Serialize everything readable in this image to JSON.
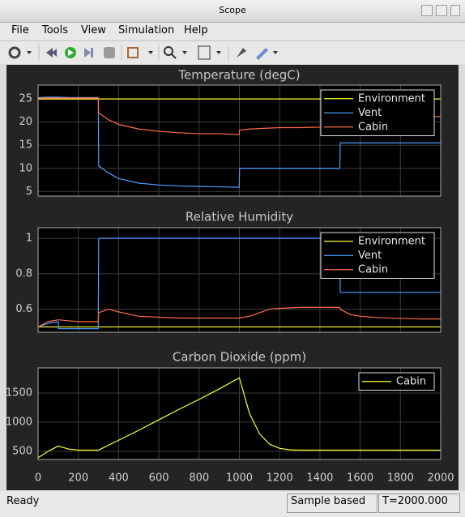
{
  "window": {
    "title": "Scope"
  },
  "menu": [
    "File",
    "Tools",
    "View",
    "Simulation",
    "Help"
  ],
  "status": {
    "message": "Ready",
    "mode": "Sample based",
    "time": "T=2000.000"
  },
  "chart_data": [
    {
      "type": "line",
      "title": "Temperature (degC)",
      "x": [
        0,
        50,
        100,
        150,
        200,
        250,
        299,
        301,
        350,
        400,
        500,
        600,
        700,
        800,
        900,
        999,
        1001,
        1050,
        1100,
        1200,
        1300,
        1400,
        1499,
        1501,
        1600,
        1700,
        1800,
        1900,
        2000
      ],
      "series": [
        {
          "name": "Environment",
          "color": "#ffff33",
          "values": [
            25,
            25,
            25,
            25,
            25,
            25,
            25,
            25,
            25,
            25,
            25,
            25,
            25,
            25,
            25,
            25,
            25,
            25,
            25,
            25,
            25,
            25,
            25,
            25,
            25,
            25,
            25,
            25,
            25
          ]
        },
        {
          "name": "Vent",
          "color": "#4d9dff",
          "values": [
            25.3,
            25.4,
            25.4,
            25.3,
            25.3,
            25.3,
            25.3,
            10.5,
            9,
            7.8,
            6.8,
            6.4,
            6.2,
            6.1,
            6.0,
            5.9,
            10,
            10,
            10,
            10,
            10,
            10,
            10,
            15.5,
            15.5,
            15.5,
            15.5,
            15.5,
            15.5
          ]
        },
        {
          "name": "Cabin",
          "color": "#ff6b4a",
          "values": [
            25.2,
            25.2,
            25.2,
            25.2,
            25.2,
            25.2,
            25.2,
            22,
            20.5,
            19.5,
            18.5,
            18,
            17.7,
            17.5,
            17.5,
            17.3,
            18.3,
            18.5,
            18.6,
            18.8,
            18.8,
            18.9,
            18.9,
            20.5,
            21,
            21.1,
            21.2,
            21.2,
            21.2
          ]
        }
      ],
      "xlim": [
        0,
        2000
      ],
      "xticks": [
        0,
        200,
        400,
        600,
        800,
        1000,
        1200,
        1400,
        1600,
        1800,
        2000
      ],
      "ylim": [
        4,
        28
      ],
      "yticks": [
        5,
        10,
        15,
        20,
        25
      ],
      "grid": true,
      "legend": "upper right"
    },
    {
      "type": "line",
      "title": "Relative Humidity",
      "x": [
        0,
        50,
        100,
        101,
        150,
        200,
        250,
        299,
        301,
        350,
        400,
        500,
        600,
        700,
        800,
        900,
        999,
        1050,
        1100,
        1150,
        1200,
        1300,
        1400,
        1499,
        1501,
        1550,
        1600,
        1700,
        1800,
        1900,
        2000
      ],
      "series": [
        {
          "name": "Environment",
          "color": "#ffff33",
          "values": [
            0.5,
            0.5,
            0.5,
            0.5,
            0.5,
            0.5,
            0.5,
            0.5,
            0.5,
            0.5,
            0.5,
            0.5,
            0.5,
            0.5,
            0.5,
            0.5,
            0.5,
            0.5,
            0.5,
            0.5,
            0.5,
            0.5,
            0.5,
            0.5,
            0.5,
            0.5,
            0.5,
            0.5,
            0.5,
            0.5,
            0.5
          ]
        },
        {
          "name": "Vent",
          "color": "#4d9dff",
          "values": [
            0.5,
            0.52,
            0.53,
            0.49,
            0.49,
            0.49,
            0.49,
            0.49,
            1.0,
            1.0,
            1.0,
            1.0,
            1.0,
            1.0,
            1.0,
            1.0,
            1.0,
            1.0,
            1.0,
            1.0,
            1.0,
            1.0,
            1.0,
            1.0,
            0.695,
            0.695,
            0.695,
            0.695,
            0.695,
            0.695,
            0.695
          ]
        },
        {
          "name": "Cabin",
          "color": "#ff6b4a",
          "values": [
            0.5,
            0.53,
            0.54,
            0.54,
            0.535,
            0.53,
            0.53,
            0.53,
            0.58,
            0.6,
            0.585,
            0.56,
            0.555,
            0.55,
            0.55,
            0.55,
            0.55,
            0.56,
            0.58,
            0.6,
            0.605,
            0.61,
            0.61,
            0.61,
            0.6,
            0.57,
            0.56,
            0.552,
            0.548,
            0.545,
            0.545
          ]
        }
      ],
      "xlim": [
        0,
        2000
      ],
      "xticks": [
        0,
        200,
        400,
        600,
        800,
        1000,
        1200,
        1400,
        1600,
        1800,
        2000
      ],
      "ylim": [
        0.47,
        1.06
      ],
      "yticks": [
        0.6,
        0.8,
        1
      ],
      "grid": true,
      "legend": "upper right"
    },
    {
      "type": "line",
      "title": "Carbon Dioxide (ppm)",
      "x": [
        0,
        50,
        100,
        150,
        200,
        300,
        400,
        500,
        600,
        700,
        800,
        900,
        1000,
        1050,
        1100,
        1150,
        1200,
        1250,
        1300,
        1400,
        1600,
        2000
      ],
      "series": [
        {
          "name": "Cabin",
          "color": "#ffff33",
          "values": [
            390,
            500,
            590,
            540,
            520,
            520,
            690,
            860,
            1040,
            1220,
            1390,
            1570,
            1760,
            1150,
            800,
            620,
            550,
            525,
            520,
            520,
            520,
            520
          ]
        }
      ],
      "xlim": [
        0,
        2000
      ],
      "xticks": [
        0,
        200,
        400,
        600,
        800,
        1000,
        1200,
        1400,
        1600,
        1800,
        2000
      ],
      "ylim": [
        360,
        1930
      ],
      "yticks": [
        500,
        1000,
        1500
      ],
      "grid": true,
      "legend": "upper right"
    }
  ]
}
